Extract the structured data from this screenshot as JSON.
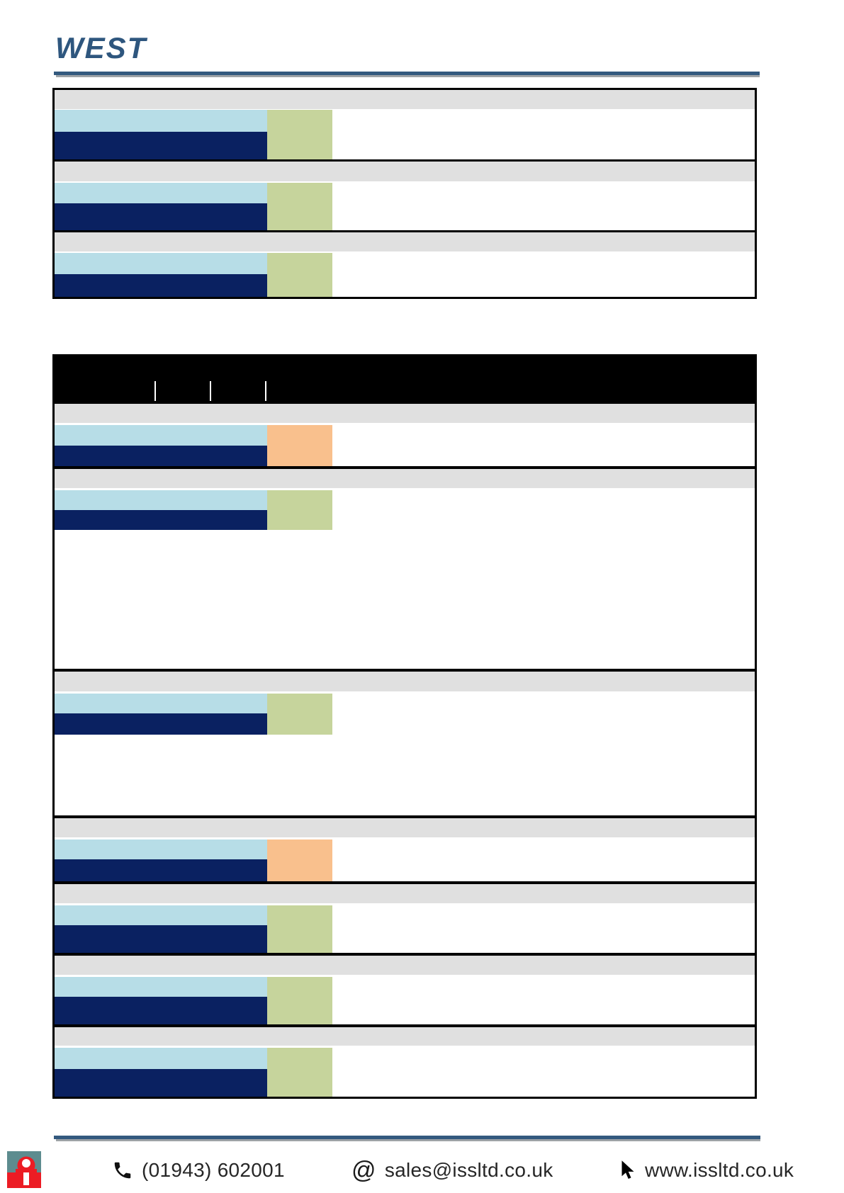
{
  "page": {
    "background": "#ffffff"
  },
  "brand": {
    "logo_text": "WEST",
    "logo_color": "#2e567e"
  },
  "rules": {
    "blue": "#33597e",
    "gray": "#9da2a6"
  },
  "colors": {
    "header_gray": "#e0e0e0",
    "light_blue": "#b7dde7",
    "navy": "#0a2161",
    "green": "#c6d49c",
    "orange": "#f9c08d",
    "black": "#000000",
    "white": "#ffffff"
  },
  "spec_table": {
    "sections": [
      {
        "swatch": "green"
      },
      {
        "swatch": "green"
      },
      {
        "swatch": "green"
      }
    ]
  },
  "main_table": {
    "title_bar": {
      "background": "#000000",
      "separator_glyph": "|",
      "separator_count": 3
    },
    "sections": [
      {
        "swatch": "orange"
      },
      {
        "swatch": "green"
      },
      {
        "swatch": "green"
      },
      {
        "swatch": "orange"
      },
      {
        "swatch": "green"
      },
      {
        "swatch": "green"
      },
      {
        "swatch": "green"
      }
    ]
  },
  "footer": {
    "phone": {
      "icon": "phone-icon",
      "text": "(01943) 602001"
    },
    "email": {
      "icon": "at-icon",
      "text": "sales@issltd.co.uk"
    },
    "website": {
      "icon": "cursor-icon",
      "text": "www.issltd.co.uk"
    },
    "logo": {
      "icon": "iss-logo-icon",
      "teal": "#5d8c8f",
      "red": "#ec1c24"
    }
  }
}
